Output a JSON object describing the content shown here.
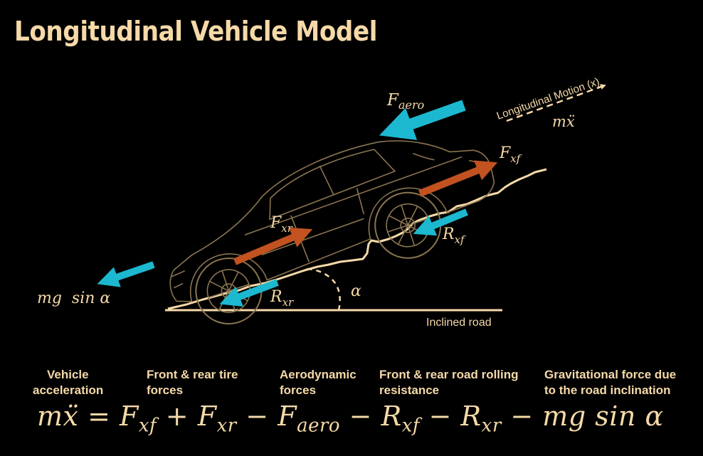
{
  "title": "Longitudinal Vehicle Model",
  "colors": {
    "background": "#000000",
    "text": "#f5d9a8",
    "resistive_force_arrow": "#1cb8cf",
    "tire_force_arrow": "#c2521f",
    "car_outline": "#8a7550"
  },
  "diagram": {
    "labels": {
      "f_aero": "F",
      "f_aero_sub": "aero",
      "motion_direction": "Longitudinal Motion (x)",
      "acceleration": "mẍ",
      "f_xf": "F",
      "f_xf_sub": "xf",
      "f_xr": "F",
      "f_xr_sub": "xr",
      "r_xf": "R",
      "r_xf_sub": "xf",
      "r_xr": "R",
      "r_xr_sub": "xr",
      "gravity": "mg  sin α",
      "angle": "α",
      "road": "Inclined road"
    },
    "icons": {
      "vehicle": "car-outline-icon",
      "road": "rough-road-surface-icon"
    }
  },
  "terms": [
    {
      "line1": "Vehicle",
      "line2": "acceleration"
    },
    {
      "line1": "Front & rear tire",
      "line2": "forces"
    },
    {
      "line1": "Aerodynamic",
      "line2": "forces"
    },
    {
      "line1": "Front & rear road rolling",
      "line2": "resistance"
    },
    {
      "line1": "Gravitational force due",
      "line2": "to the road inclination"
    }
  ],
  "equation": "mẍ = F_xf + F_xr − F_aero − R_xf − R_xr − mg sin α"
}
